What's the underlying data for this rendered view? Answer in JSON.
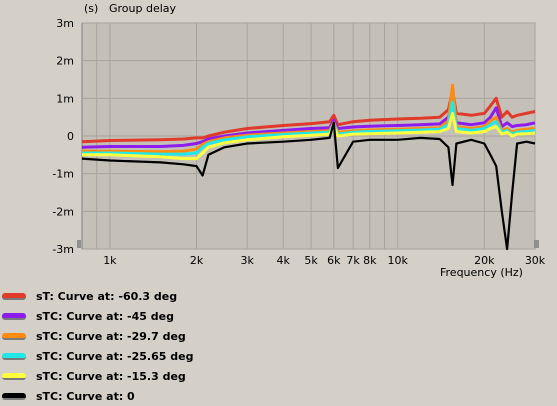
{
  "chart_data": {
    "type": "line",
    "title": "Group delay",
    "yunit": "(s)",
    "xlabel": "Frequency  (Hz)",
    "xscale": "log",
    "xlim": [
      800,
      30000
    ],
    "ylim": [
      -3,
      3
    ],
    "y_ticks": [
      "3m",
      "2m",
      "1m",
      "0",
      "-1m",
      "-2m",
      "-3m"
    ],
    "x_ticks": [
      "1k",
      "2k",
      "3k",
      "4k",
      "5k",
      "6k",
      "7k",
      "8k",
      "10k",
      "20k",
      "30k"
    ],
    "grid": true,
    "legend_position": "below",
    "x": [
      800,
      1000,
      1500,
      1800,
      2000,
      2100,
      2200,
      2500,
      3000,
      4000,
      5000,
      5800,
      6000,
      6200,
      7000,
      8000,
      10000,
      12000,
      14000,
      15000,
      15500,
      16000,
      18000,
      20000,
      21000,
      22000,
      23000,
      24000,
      25000,
      26000,
      28000,
      30000
    ],
    "series": [
      {
        "name": "sT: Curve at: -60.3 deg",
        "color": "#e03a2a",
        "values": [
          -0.15,
          -0.12,
          -0.1,
          -0.08,
          -0.05,
          -0.05,
          0.0,
          0.1,
          0.2,
          0.28,
          0.33,
          0.38,
          0.55,
          0.3,
          0.38,
          0.42,
          0.45,
          0.47,
          0.5,
          0.7,
          1.2,
          0.6,
          0.55,
          0.6,
          0.8,
          1.0,
          0.5,
          0.65,
          0.5,
          0.55,
          0.6,
          0.65
        ]
      },
      {
        "name": "sTC: Curve at: -45 deg",
        "color": "#8c1cf0",
        "values": [
          -0.3,
          -0.28,
          -0.28,
          -0.25,
          -0.2,
          -0.15,
          -0.08,
          0.0,
          0.08,
          0.15,
          0.2,
          0.22,
          0.42,
          0.2,
          0.24,
          0.26,
          0.28,
          0.3,
          0.32,
          0.5,
          1.0,
          0.35,
          0.3,
          0.35,
          0.5,
          0.75,
          0.25,
          0.35,
          0.25,
          0.28,
          0.3,
          0.35
        ]
      },
      {
        "name": "sTC: Curve at: -29.7 deg",
        "color": "#ff8c10",
        "values": [
          -0.4,
          -0.4,
          -0.42,
          -0.4,
          -0.35,
          -0.22,
          -0.15,
          -0.05,
          0.02,
          0.08,
          0.12,
          0.14,
          0.35,
          0.1,
          0.14,
          0.16,
          0.18,
          0.2,
          0.22,
          0.4,
          1.35,
          0.25,
          0.2,
          0.25,
          0.4,
          0.5,
          0.15,
          0.2,
          0.1,
          0.15,
          0.18,
          0.2
        ]
      },
      {
        "name": "sTC: Curve at: -25.65 deg",
        "color": "#20e8e8",
        "values": [
          -0.45,
          -0.45,
          -0.48,
          -0.48,
          -0.45,
          -0.3,
          -0.2,
          -0.1,
          -0.02,
          0.04,
          0.08,
          0.1,
          0.3,
          0.05,
          0.1,
          0.12,
          0.14,
          0.16,
          0.18,
          0.3,
          0.9,
          0.2,
          0.15,
          0.2,
          0.3,
          0.38,
          0.1,
          0.15,
          0.05,
          0.1,
          0.12,
          0.15
        ]
      },
      {
        "name": "sTC: Curve at: -15.3 deg",
        "color": "#ffff40",
        "values": [
          -0.5,
          -0.5,
          -0.55,
          -0.6,
          -0.6,
          -0.45,
          -0.3,
          -0.18,
          -0.1,
          -0.02,
          0.02,
          0.05,
          0.25,
          0.0,
          0.05,
          0.06,
          0.08,
          0.1,
          0.12,
          0.2,
          0.6,
          0.12,
          0.08,
          0.12,
          0.2,
          0.25,
          0.05,
          0.1,
          0.0,
          0.05,
          0.06,
          0.08
        ]
      },
      {
        "name": "sTC: Curve at: 0",
        "color": "#000000",
        "values": [
          -0.6,
          -0.65,
          -0.7,
          -0.75,
          -0.8,
          -1.05,
          -0.5,
          -0.3,
          -0.2,
          -0.15,
          -0.1,
          -0.05,
          0.35,
          -0.85,
          -0.15,
          -0.1,
          -0.1,
          -0.05,
          -0.08,
          -0.3,
          -1.3,
          -0.2,
          -0.1,
          -0.2,
          -0.5,
          -0.8,
          -2.0,
          -3.0,
          -1.5,
          -0.2,
          -0.15,
          -0.2
        ]
      }
    ]
  }
}
